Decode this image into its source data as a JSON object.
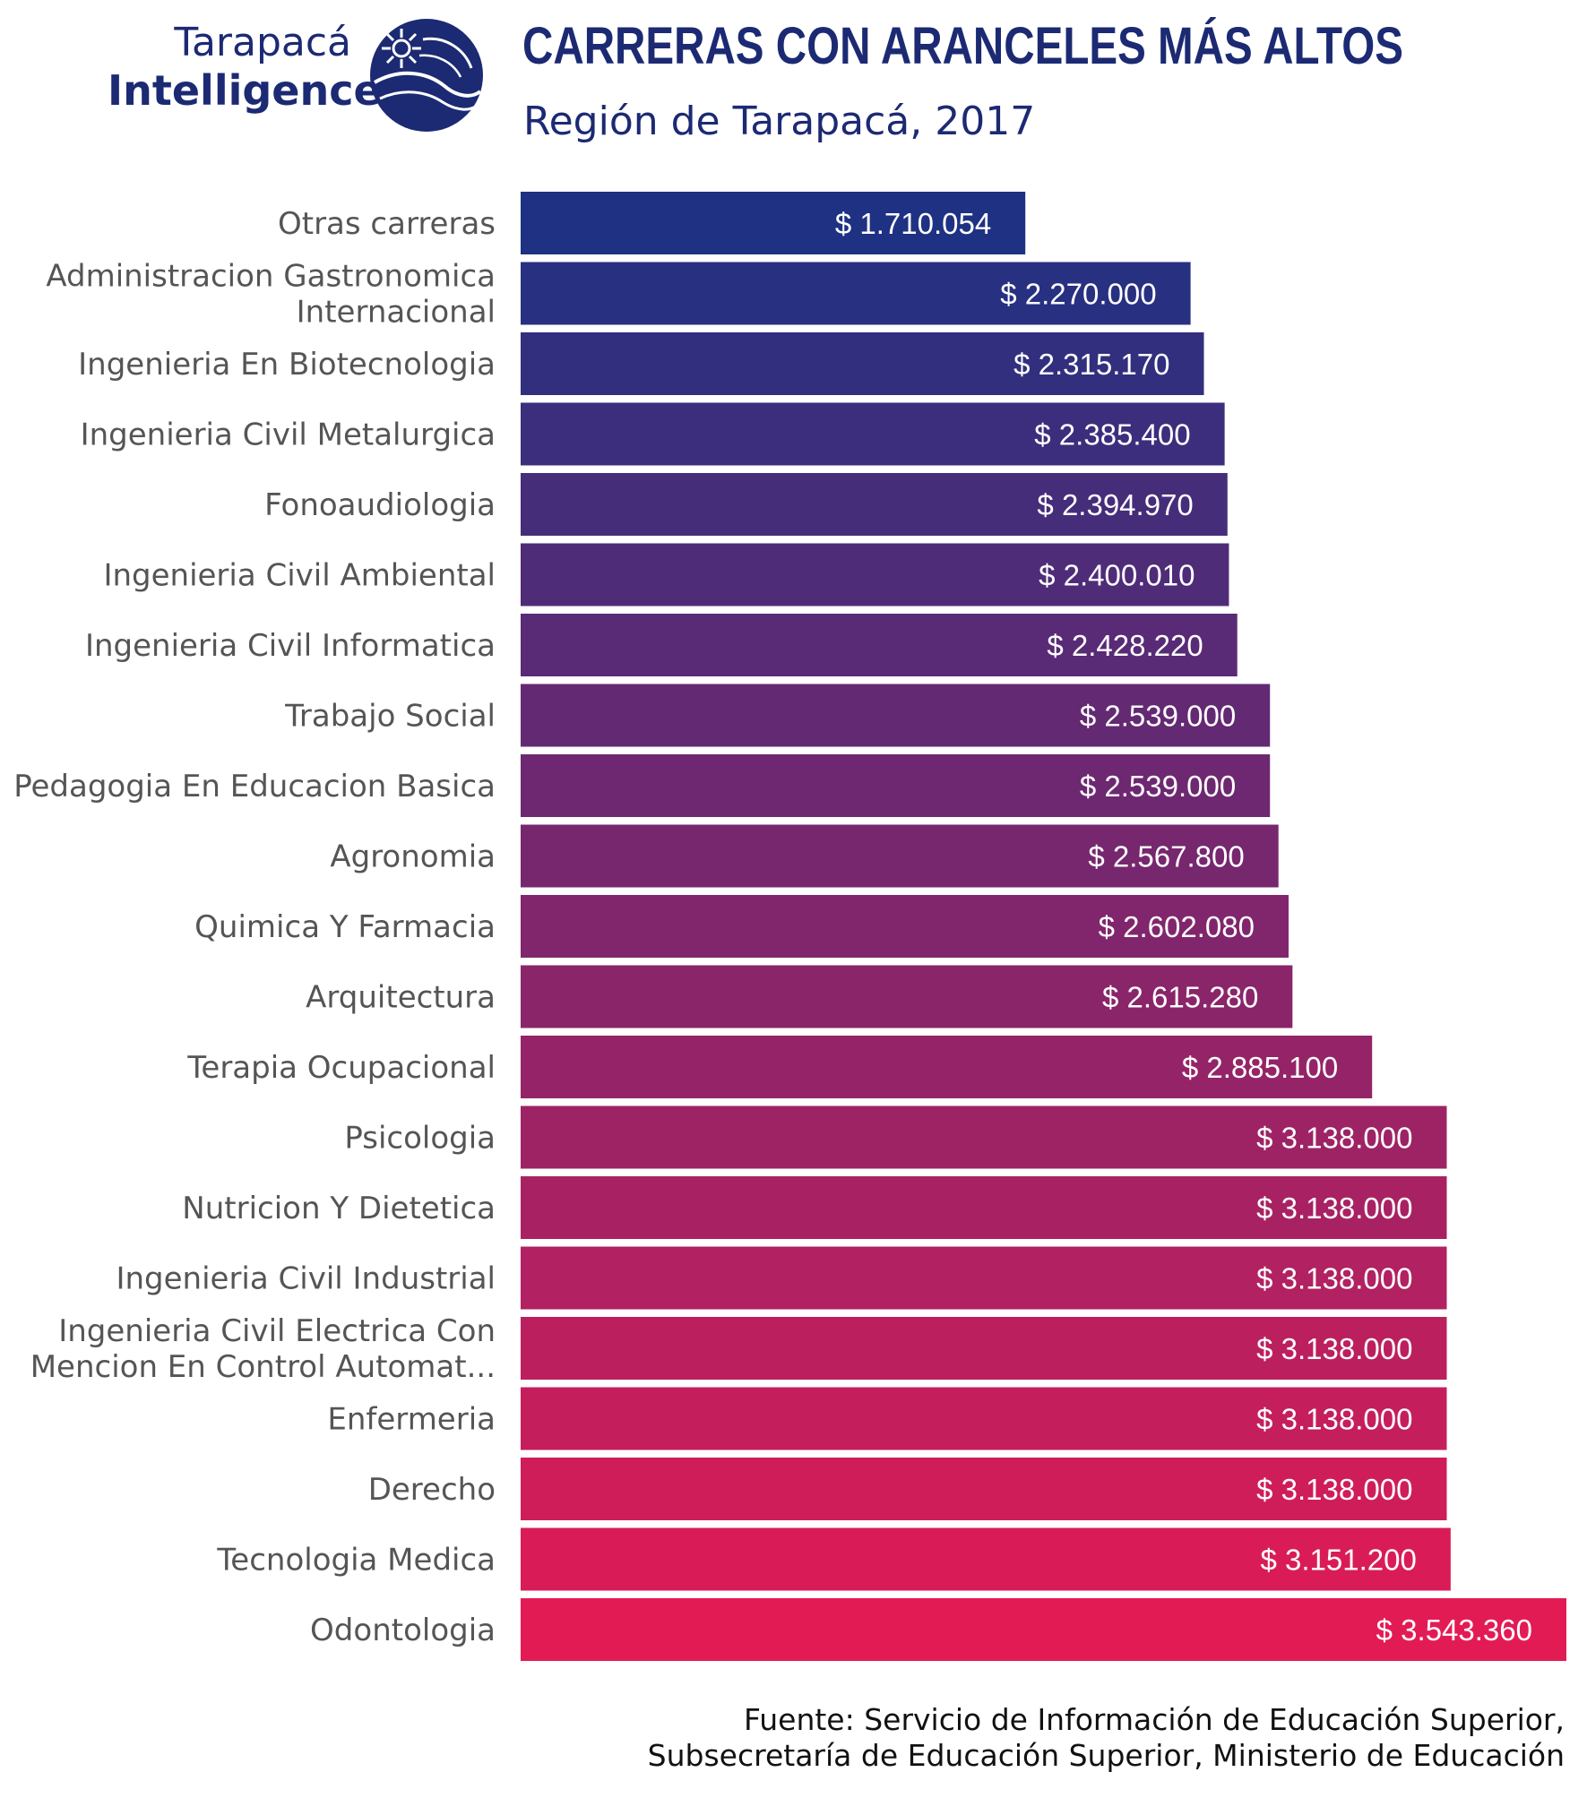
{
  "logo": {
    "line1": "Tarapacá",
    "line2": "Intelligence",
    "icon": "globe-icon",
    "color": "#1c2a73"
  },
  "header": {
    "title": "CARRERAS CON ARANCELES MÁS ALTOS",
    "subtitle": "Región de Tarapacá, 2017"
  },
  "source": {
    "line1": "Fuente: Servicio de Información de Educación Superior,",
    "line2": "Subsecretaría de Educación Superior, Ministerio de Educación"
  },
  "chart_data": {
    "type": "bar",
    "orientation": "horizontal",
    "categories": [
      [
        "Otras carreras"
      ],
      [
        "Administracion Gastronomica",
        "Internacional"
      ],
      [
        "Ingenieria En Biotecnologia"
      ],
      [
        "Ingenieria Civil Metalurgica"
      ],
      [
        "Fonoaudiologia"
      ],
      [
        "Ingenieria Civil Ambiental"
      ],
      [
        "Ingenieria Civil Informatica"
      ],
      [
        "Trabajo Social"
      ],
      [
        "Pedagogia En Educacion Basica"
      ],
      [
        "Agronomia"
      ],
      [
        "Quimica Y Farmacia"
      ],
      [
        "Arquitectura"
      ],
      [
        "Terapia Ocupacional"
      ],
      [
        "Psicologia"
      ],
      [
        "Nutricion Y Dietetica"
      ],
      [
        "Ingenieria Civil Industrial"
      ],
      [
        "Ingenieria Civil Electrica Con",
        "Mencion En Control Automat..."
      ],
      [
        "Enfermeria"
      ],
      [
        "Derecho"
      ],
      [
        "Tecnologia Medica"
      ],
      [
        "Odontologia"
      ]
    ],
    "values": [
      1710054,
      2270000,
      2315170,
      2385400,
      2394970,
      2400010,
      2428220,
      2539000,
      2539000,
      2567800,
      2602080,
      2615280,
      2885100,
      3138000,
      3138000,
      3138000,
      3138000,
      3138000,
      3138000,
      3151200,
      3543360
    ],
    "value_labels": [
      "$ 1.710.054",
      "$ 2.270.000",
      "$ 2.315.170",
      "$ 2.385.400",
      "$ 2.394.970",
      "$ 2.400.010",
      "$ 2.428.220",
      "$ 2.539.000",
      "$ 2.539.000",
      "$ 2.567.800",
      "$ 2.602.080",
      "$ 2.615.280",
      "$ 2.885.100",
      "$ 3.138.000",
      "$ 3.138.000",
      "$ 3.138.000",
      "$ 3.138.000",
      "$ 3.138.000",
      "$ 3.138.000",
      "$ 3.151.200",
      "$ 3.543.360"
    ],
    "xlim": [
      0,
      3543360
    ],
    "grid": false,
    "legend": "none",
    "color_gradient": [
      "#1e3183",
      "#e31b55"
    ],
    "label_color": "#555555",
    "value_label_color": "#ffffff"
  }
}
